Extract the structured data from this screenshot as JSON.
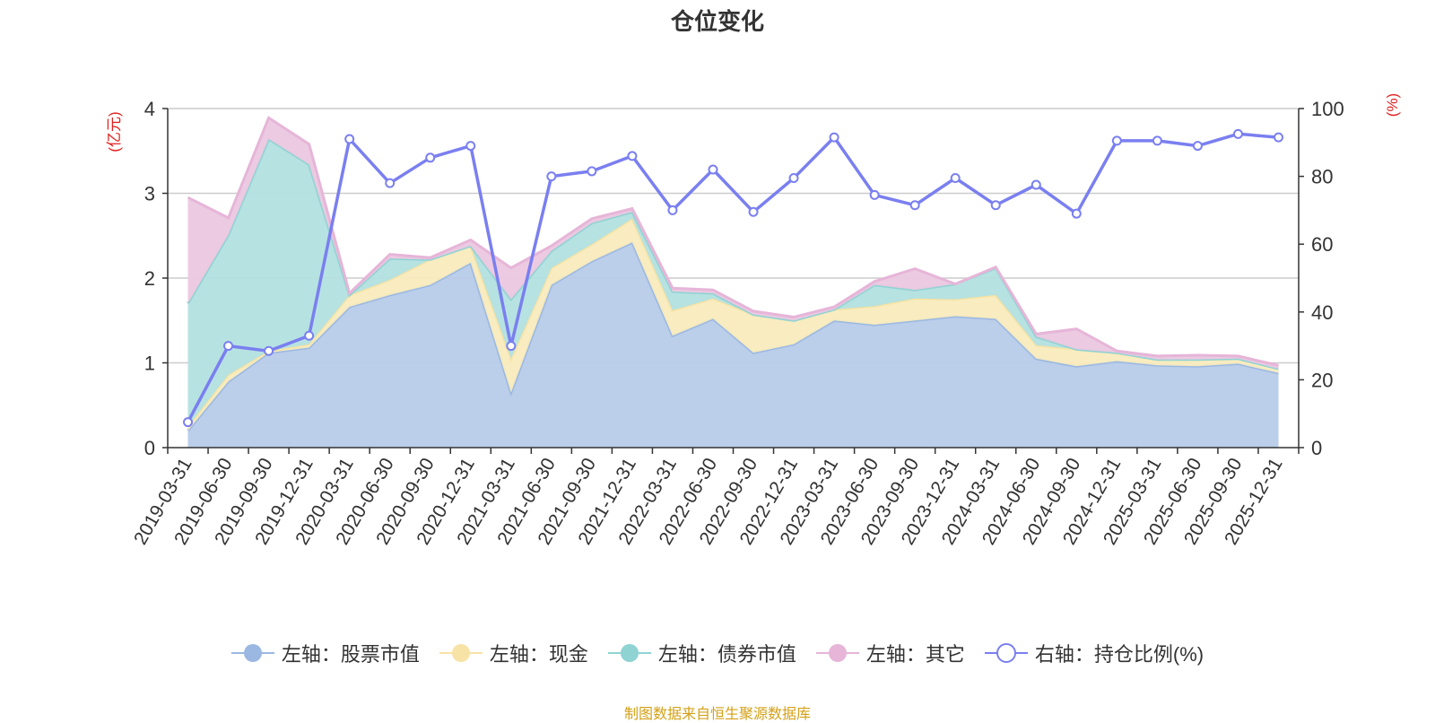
{
  "chart_data": {
    "type": "area",
    "title": "仓位变化",
    "y_left_label": "(亿元)",
    "y_right_label": "(%)",
    "y_left_range": [
      0,
      4
    ],
    "y_left_ticks": [
      0,
      1,
      2,
      3,
      4
    ],
    "y_right_range": [
      0,
      100
    ],
    "y_right_ticks": [
      0,
      20,
      40,
      60,
      80,
      100
    ],
    "grid": true,
    "legend_position": "bottom",
    "categories": [
      "2019-03-31",
      "2019-06-30",
      "2019-09-30",
      "2019-12-31",
      "2020-03-31",
      "2020-06-30",
      "2020-09-30",
      "2020-12-31",
      "2021-03-31",
      "2021-06-30",
      "2021-09-30",
      "2021-12-31",
      "2022-03-31",
      "2022-06-30",
      "2022-09-30",
      "2022-12-31",
      "2023-03-31",
      "2023-06-30",
      "2023-09-30",
      "2023-12-31",
      "2024-03-31",
      "2024-06-30",
      "2024-09-30",
      "2024-12-31",
      "2025-03-31",
      "2025-06-30",
      "2025-09-30",
      "2025-12-31"
    ],
    "series": [
      {
        "name": "左轴：股票市值",
        "axis": "left",
        "kind": "stacked-area",
        "color": "#9ab8e2",
        "fill": "#b7cbe9",
        "values": [
          0.2,
          0.78,
          1.12,
          1.18,
          1.66,
          1.8,
          1.92,
          2.18,
          0.65,
          1.92,
          2.2,
          2.42,
          1.32,
          1.52,
          1.12,
          1.22,
          1.5,
          1.45,
          1.5,
          1.55,
          1.52,
          1.05,
          0.96,
          1.02,
          0.97,
          0.96,
          0.99,
          0.88
        ]
      },
      {
        "name": "左轴：现金",
        "axis": "left",
        "kind": "stacked-area",
        "color": "#f7e3a5",
        "fill": "#f8ebbd",
        "values": [
          0.05,
          0.08,
          0.02,
          0.04,
          0.14,
          0.18,
          0.3,
          0.2,
          0.4,
          0.2,
          0.2,
          0.28,
          0.3,
          0.24,
          0.45,
          0.28,
          0.13,
          0.22,
          0.26,
          0.2,
          0.28,
          0.16,
          0.2,
          0.1,
          0.07,
          0.08,
          0.06,
          0.05
        ]
      },
      {
        "name": "左轴：债券市值",
        "axis": "left",
        "kind": "stacked-area",
        "color": "#8fd3d3",
        "fill": "#b3e0e0",
        "values": [
          1.45,
          1.65,
          2.5,
          2.12,
          0,
          0.25,
          0,
          0,
          0.7,
          0.2,
          0.25,
          0.08,
          0.22,
          0.06,
          0,
          0,
          0,
          0.25,
          0.1,
          0.18,
          0.32,
          0.1,
          0,
          0,
          0,
          0,
          0,
          0
        ]
      },
      {
        "name": "左轴：其它",
        "axis": "left",
        "kind": "stacked-area",
        "color": "#e6b5d8",
        "fill": "#ebc8e0",
        "values": [
          1.25,
          0.2,
          0.25,
          0.24,
          0.02,
          0.05,
          0.02,
          0.07,
          0.37,
          0.06,
          0.05,
          0.04,
          0.04,
          0.04,
          0.04,
          0.04,
          0.03,
          0.04,
          0.25,
          0,
          0.01,
          0.03,
          0.24,
          0.02,
          0.04,
          0.05,
          0.03,
          0.04
        ]
      },
      {
        "name": "右轴：持仓比例(%)",
        "axis": "right",
        "kind": "line",
        "color": "#7a7ff0",
        "values": [
          7.5,
          30,
          28.5,
          33,
          91,
          78,
          85.5,
          89,
          30,
          80,
          81.5,
          86,
          70,
          82,
          69.5,
          79.5,
          91.5,
          74.5,
          71.5,
          79.5,
          71.5,
          77.5,
          69,
          90.5,
          90.5,
          89,
          92.5,
          91.5
        ]
      }
    ]
  },
  "source_note": "制图数据来自恒生聚源数据库"
}
